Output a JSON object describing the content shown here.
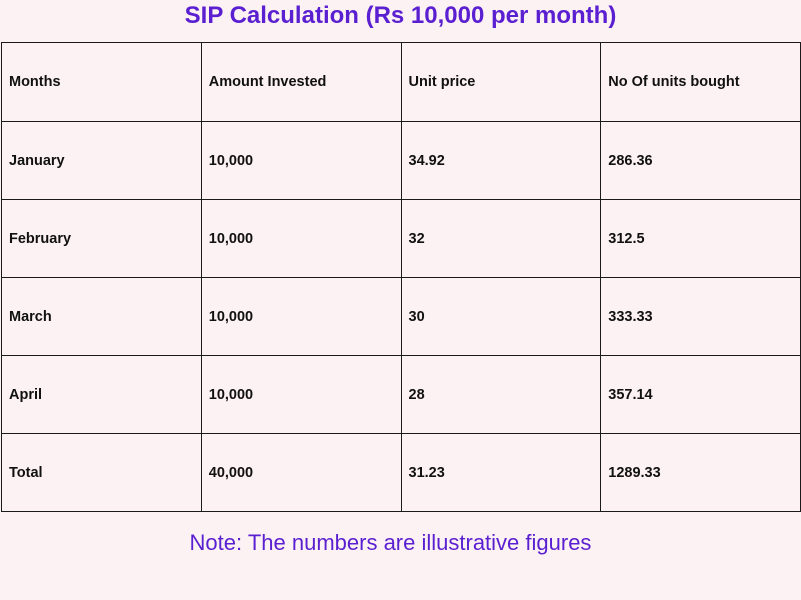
{
  "title": "SIP Calculation (Rs 10,000 per month)",
  "table": {
    "headers": [
      "Months",
      "Amount Invested",
      "Unit price",
      "No Of units bought"
    ],
    "rows": [
      [
        "January",
        "10,000",
        "34.92",
        "286.36"
      ],
      [
        "February",
        "10,000",
        "32",
        "312.5"
      ],
      [
        "March",
        "10,000",
        "30",
        "333.33"
      ],
      [
        "April",
        "10,000",
        "28",
        "357.14"
      ],
      [
        "Total",
        "40,000",
        "31.23",
        "1289.33"
      ]
    ]
  },
  "note": "Note: The numbers are illustrative figures",
  "colors": {
    "background": "#fdf2f3",
    "accent": "#5a1fd1",
    "text": "#111111",
    "border": "#1a1a1a"
  }
}
